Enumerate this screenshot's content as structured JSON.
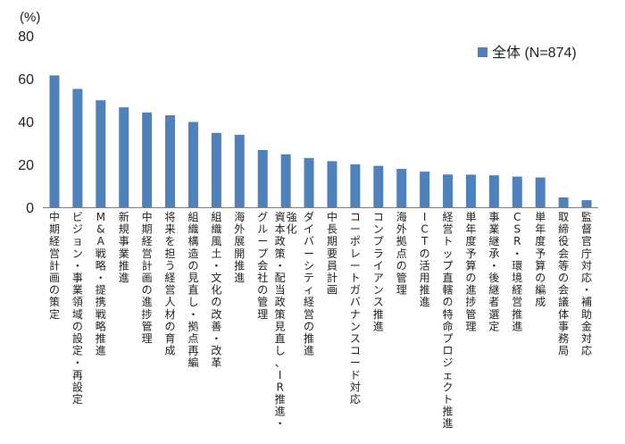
{
  "chart_data": {
    "type": "bar",
    "unit_label": "(%)",
    "ylim": [
      0,
      80
    ],
    "yticks": [
      0,
      20,
      40,
      60,
      80
    ],
    "grid": false,
    "legend_position": "top-right",
    "series": [
      {
        "name": "全体 (N=874)",
        "color": "#4f81bd",
        "values": [
          61.5,
          55.2,
          49.9,
          46.6,
          44.2,
          42.9,
          39.8,
          34.7,
          33.8,
          26.7,
          24.7,
          23.0,
          21.5,
          20.0,
          19.3,
          17.9,
          16.6,
          15.3,
          15.2,
          14.9,
          14.3,
          13.9,
          4.6,
          3.3
        ]
      }
    ],
    "categories": [
      "中期経営計画の策定",
      "ビジョン・事業領域の設定・再設定",
      "M&A戦略・提携戦略推進",
      "新規事業推進",
      "中期経営計画の進捗管理",
      "将来を担う経営人材の育成",
      "組織構造の見直し・拠点再編",
      "組織風土・文化の改善・改革",
      "海外展開推進",
      "グループ会社の管理",
      "資本政策・配当政策見直し、IR推進・強化",
      "ダイバーシティ経営の推進",
      "中長期要員計画",
      "コーポレートガバナンスコード対応",
      "コンプライアンス推進",
      "海外拠点の管理",
      "ICTの活用推進",
      "経営トップ直轄の特命プロジェクト推進",
      "単年度予算の進捗管理",
      "事業継承・後継者選定",
      "CSR・環境経営推進",
      "単年度予算の編成",
      "取締役会等の会議体事務局",
      "監督官庁対応・補助金対応"
    ]
  }
}
